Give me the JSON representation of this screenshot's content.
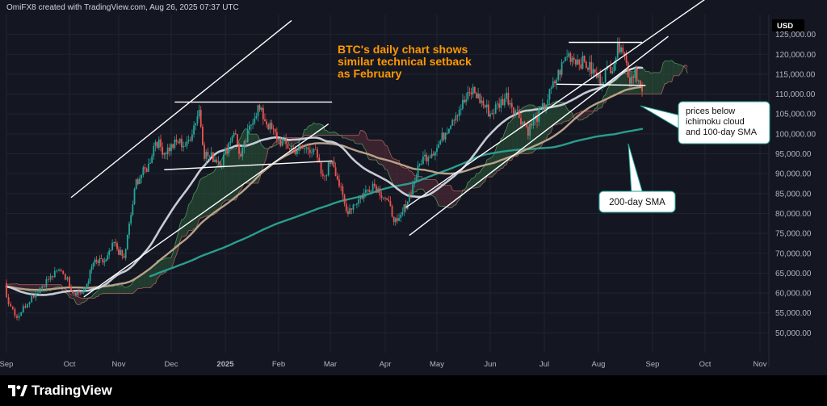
{
  "header": {
    "credit": "OmiFX8 created with TradingView.com, Aug 26, 2025 07:37 UTC"
  },
  "brand": {
    "name": "TradingView",
    "logo_icon": "tradingview-logo-icon"
  },
  "colors": {
    "background": "#141722",
    "grid": "#1f2430",
    "candle_up": "#26a69a",
    "candle_down": "#ef5350",
    "sma200": "#2a9d8f",
    "sma100": "#b8a389",
    "sma50": "#c7cbd6",
    "cloud_bull": "#2e5b3a",
    "cloud_bear": "#5b2e3a",
    "annotation": "#ff9800",
    "callout_border": "#26a69a"
  },
  "chart_data": {
    "type": "candlestick",
    "title": "BTC's daily chart shows similar technical setback as February",
    "unit_label": "USD",
    "ylim": [
      45000,
      130000
    ],
    "y_ticks": [
      "125,000.00",
      "120,000.00",
      "115,000.00",
      "110,000.00",
      "105,000.00",
      "100,000.00",
      "95,000.00",
      "90,000.00",
      "85,000.00",
      "80,000.00",
      "75,000.00",
      "70,000.00",
      "65,000.00",
      "60,000.00",
      "55,000.00",
      "50,000.00"
    ],
    "x_ticks": [
      "Sep",
      "Oct",
      "Nov",
      "Dec",
      "2025",
      "Feb",
      "Mar",
      "Apr",
      "May",
      "Jun",
      "Jul",
      "Aug",
      "Sep",
      "Oct",
      "Nov"
    ],
    "price_path": [
      {
        "date": "2024-09-01",
        "close": 59000
      },
      {
        "date": "2024-09-06",
        "close": 54000
      },
      {
        "date": "2024-09-12",
        "close": 58500
      },
      {
        "date": "2024-09-20",
        "close": 63000
      },
      {
        "date": "2024-09-27",
        "close": 66000
      },
      {
        "date": "2024-10-03",
        "close": 60500
      },
      {
        "date": "2024-10-10",
        "close": 60000
      },
      {
        "date": "2024-10-16",
        "close": 67500
      },
      {
        "date": "2024-10-24",
        "close": 68000
      },
      {
        "date": "2024-10-29",
        "close": 72500
      },
      {
        "date": "2024-11-04",
        "close": 68500
      },
      {
        "date": "2024-11-11",
        "close": 88000
      },
      {
        "date": "2024-11-18",
        "close": 92000
      },
      {
        "date": "2024-11-22",
        "close": 98500
      },
      {
        "date": "2024-11-27",
        "close": 95500
      },
      {
        "date": "2024-12-05",
        "close": 98000
      },
      {
        "date": "2024-12-10",
        "close": 97000
      },
      {
        "date": "2024-12-17",
        "close": 106000
      },
      {
        "date": "2024-12-20",
        "close": 95000
      },
      {
        "date": "2024-12-30",
        "close": 93000
      },
      {
        "date": "2025-01-06",
        "close": 101000
      },
      {
        "date": "2025-01-10",
        "close": 94000
      },
      {
        "date": "2025-01-17",
        "close": 104000
      },
      {
        "date": "2025-01-20",
        "close": 106500
      },
      {
        "date": "2025-01-27",
        "close": 101500
      },
      {
        "date": "2025-02-03",
        "close": 97500
      },
      {
        "date": "2025-02-10",
        "close": 96000
      },
      {
        "date": "2025-02-20",
        "close": 96500
      },
      {
        "date": "2025-02-25",
        "close": 88500
      },
      {
        "date": "2025-03-02",
        "close": 94000
      },
      {
        "date": "2025-03-10",
        "close": 80500
      },
      {
        "date": "2025-03-18",
        "close": 84000
      },
      {
        "date": "2025-03-25",
        "close": 87500
      },
      {
        "date": "2025-04-01",
        "close": 84000
      },
      {
        "date": "2025-04-08",
        "close": 77000
      },
      {
        "date": "2025-04-15",
        "close": 84500
      },
      {
        "date": "2025-04-22",
        "close": 93500
      },
      {
        "date": "2025-05-01",
        "close": 96500
      },
      {
        "date": "2025-05-10",
        "close": 104000
      },
      {
        "date": "2025-05-22",
        "close": 111000
      },
      {
        "date": "2025-06-01",
        "close": 105000
      },
      {
        "date": "2025-06-10",
        "close": 109500
      },
      {
        "date": "2025-06-22",
        "close": 101000
      },
      {
        "date": "2025-07-01",
        "close": 107000
      },
      {
        "date": "2025-07-10",
        "close": 116000
      },
      {
        "date": "2025-07-14",
        "close": 120000
      },
      {
        "date": "2025-07-25",
        "close": 117500
      },
      {
        "date": "2025-08-02",
        "close": 113500
      },
      {
        "date": "2025-08-09",
        "close": 117500
      },
      {
        "date": "2025-08-14",
        "close": 123500
      },
      {
        "date": "2025-08-19",
        "close": 113500
      },
      {
        "date": "2025-08-22",
        "close": 116500
      },
      {
        "date": "2025-08-26",
        "close": 110000
      }
    ],
    "annotations": [
      {
        "text": "BTC's daily chart shows similar technical setback as February",
        "type": "title"
      },
      {
        "text": "prices below ichimoku cloud and 100-day SMA",
        "type": "callout"
      },
      {
        "text": "200-day SMA",
        "type": "callout"
      }
    ],
    "grid": true
  }
}
